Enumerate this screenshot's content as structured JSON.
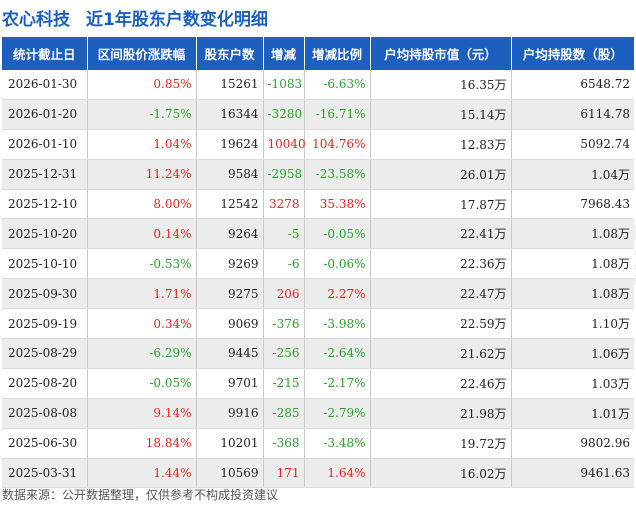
{
  "header": {
    "company": "农心科技",
    "subtitle": "近1年股东户数变化明细"
  },
  "table": {
    "columns": [
      "统计截止日",
      "区间股价涨跌幅",
      "股东户数",
      "增减",
      "增减比例",
      "户均持股市值（元）",
      "户均持股数（股）"
    ],
    "rows": [
      {
        "date": "2026-01-30",
        "price_change": "0.85%",
        "holders": "15261",
        "change": "-1083",
        "change_pct": "-6.63%",
        "avg_value": "16.35万",
        "avg_shares": "6548.72"
      },
      {
        "date": "2026-01-20",
        "price_change": "-1.75%",
        "holders": "16344",
        "change": "-3280",
        "change_pct": "-16.71%",
        "avg_value": "15.14万",
        "avg_shares": "6114.78"
      },
      {
        "date": "2026-01-10",
        "price_change": "1.04%",
        "holders": "19624",
        "change": "10040",
        "change_pct": "104.76%",
        "avg_value": "12.83万",
        "avg_shares": "5092.74"
      },
      {
        "date": "2025-12-31",
        "price_change": "11.24%",
        "holders": "9584",
        "change": "-2958",
        "change_pct": "-23.58%",
        "avg_value": "26.01万",
        "avg_shares": "1.04万"
      },
      {
        "date": "2025-12-10",
        "price_change": "8.00%",
        "holders": "12542",
        "change": "3278",
        "change_pct": "35.38%",
        "avg_value": "17.87万",
        "avg_shares": "7968.43"
      },
      {
        "date": "2025-10-20",
        "price_change": "0.14%",
        "holders": "9264",
        "change": "-5",
        "change_pct": "-0.05%",
        "avg_value": "22.41万",
        "avg_shares": "1.08万"
      },
      {
        "date": "2025-10-10",
        "price_change": "-0.53%",
        "holders": "9269",
        "change": "-6",
        "change_pct": "-0.06%",
        "avg_value": "22.36万",
        "avg_shares": "1.08万"
      },
      {
        "date": "2025-09-30",
        "price_change": "1.71%",
        "holders": "9275",
        "change": "206",
        "change_pct": "2.27%",
        "avg_value": "22.47万",
        "avg_shares": "1.08万"
      },
      {
        "date": "2025-09-19",
        "price_change": "0.34%",
        "holders": "9069",
        "change": "-376",
        "change_pct": "-3.98%",
        "avg_value": "22.59万",
        "avg_shares": "1.10万"
      },
      {
        "date": "2025-08-29",
        "price_change": "-6.29%",
        "holders": "9445",
        "change": "-256",
        "change_pct": "-2.64%",
        "avg_value": "21.62万",
        "avg_shares": "1.06万"
      },
      {
        "date": "2025-08-20",
        "price_change": "-0.05%",
        "holders": "9701",
        "change": "-215",
        "change_pct": "-2.17%",
        "avg_value": "22.46万",
        "avg_shares": "1.03万"
      },
      {
        "date": "2025-08-08",
        "price_change": "9.14%",
        "holders": "9916",
        "change": "-285",
        "change_pct": "-2.79%",
        "avg_value": "21.98万",
        "avg_shares": "1.01万"
      },
      {
        "date": "2025-06-30",
        "price_change": "18.84%",
        "holders": "10201",
        "change": "-368",
        "change_pct": "-3.48%",
        "avg_value": "19.72万",
        "avg_shares": "9802.96"
      },
      {
        "date": "2025-03-31",
        "price_change": "1.44%",
        "holders": "10569",
        "change": "171",
        "change_pct": "1.64%",
        "avg_value": "16.02万",
        "avg_shares": "9461.63"
      }
    ]
  },
  "watermark": [
    "证券之星",
    "证券之星"
  ],
  "footer": {
    "source": "数据来源：公开数据整理，仅供参考不构成投资建议"
  },
  "colors": {
    "header_bg": "#1d5fbf",
    "title_text": "#1d5fbf",
    "up": "#e8231d",
    "down": "#2aa12b",
    "row_alt_bg": "#ececec"
  }
}
